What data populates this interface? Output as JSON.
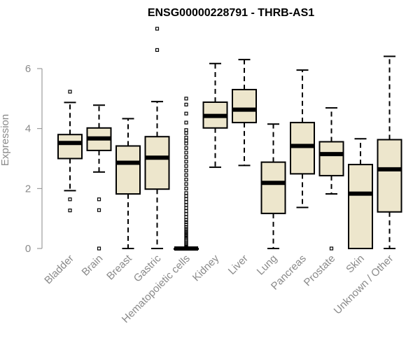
{
  "chart_data": {
    "type": "boxplot",
    "title": "ENSG00000228791 - THRB-AS1",
    "ylabel": "Expression",
    "ylim": [
      0,
      7.3
    ],
    "yticks": [
      0,
      2,
      4,
      6
    ],
    "categories": [
      "Bladder",
      "Brain",
      "Breast",
      "Gastric",
      "Hematopoietic cells",
      "Kidney",
      "Liver",
      "Lung",
      "Pancreas",
      "Prostate",
      "Skin",
      "Unknown / Other"
    ],
    "box_fill": "#ede6cc",
    "box_stroke": "#000000",
    "median_color": "#000000",
    "boxes": [
      {
        "category": "Bladder",
        "whisker_low": 1.93,
        "q1": 3.0,
        "median": 3.52,
        "q3": 3.8,
        "whisker_high": 4.87,
        "outliers": [
          5.23,
          1.64,
          1.27
        ]
      },
      {
        "category": "Brain",
        "whisker_low": 2.55,
        "q1": 3.27,
        "median": 3.67,
        "q3": 4.02,
        "whisker_high": 4.78,
        "outliers": [
          1.64,
          1.28,
          0.0
        ]
      },
      {
        "category": "Breast",
        "whisker_low": 0.0,
        "q1": 1.82,
        "median": 2.86,
        "q3": 3.42,
        "whisker_high": 4.33,
        "outliers": []
      },
      {
        "category": "Gastric",
        "whisker_low": 0.0,
        "q1": 1.98,
        "median": 3.03,
        "q3": 3.73,
        "whisker_high": 4.9,
        "outliers": [
          7.33,
          6.62
        ]
      },
      {
        "category": "Hematopoietic cells",
        "whisker_low": 0.0,
        "q1": 0.0,
        "median": 0.0,
        "q3": 0.0,
        "whisker_high": 0.0,
        "outliers": [
          5.0,
          4.8,
          4.5,
          4.2,
          3.95,
          3.85,
          3.7,
          3.6,
          3.5,
          3.35,
          3.2,
          3.05,
          2.9,
          2.75,
          2.6,
          2.45,
          2.3,
          2.15,
          2.0,
          1.85,
          1.75,
          1.65,
          1.55,
          1.45,
          1.35,
          1.25,
          1.15,
          1.05,
          0.95,
          0.88,
          0.8,
          0.72,
          0.65,
          0.58,
          0.52,
          0.46,
          0.4,
          0.34,
          0.29,
          0.24,
          0.19,
          0.14,
          0.1,
          0.06,
          0.03
        ]
      },
      {
        "category": "Kidney",
        "whisker_low": 2.71,
        "q1": 4.02,
        "median": 4.42,
        "q3": 4.88,
        "whisker_high": 6.17,
        "outliers": []
      },
      {
        "category": "Liver",
        "whisker_low": 2.77,
        "q1": 4.2,
        "median": 4.63,
        "q3": 5.3,
        "whisker_high": 6.3,
        "outliers": []
      },
      {
        "category": "Lung",
        "whisker_low": 0.0,
        "q1": 1.17,
        "median": 2.19,
        "q3": 2.88,
        "whisker_high": 4.15,
        "outliers": []
      },
      {
        "category": "Pancreas",
        "whisker_low": 1.37,
        "q1": 2.49,
        "median": 3.42,
        "q3": 4.2,
        "whisker_high": 5.95,
        "outliers": []
      },
      {
        "category": "Prostate",
        "whisker_low": 1.82,
        "q1": 2.43,
        "median": 3.15,
        "q3": 3.56,
        "whisker_high": 4.69,
        "outliers": [
          0.0
        ]
      },
      {
        "category": "Skin",
        "whisker_low": 0.0,
        "q1": 0.0,
        "median": 1.83,
        "q3": 2.8,
        "whisker_high": 3.66,
        "outliers": []
      },
      {
        "category": "Unknown / Other",
        "whisker_low": 0.0,
        "q1": 1.22,
        "median": 2.64,
        "q3": 3.63,
        "whisker_high": 6.41,
        "outliers": []
      }
    ]
  }
}
